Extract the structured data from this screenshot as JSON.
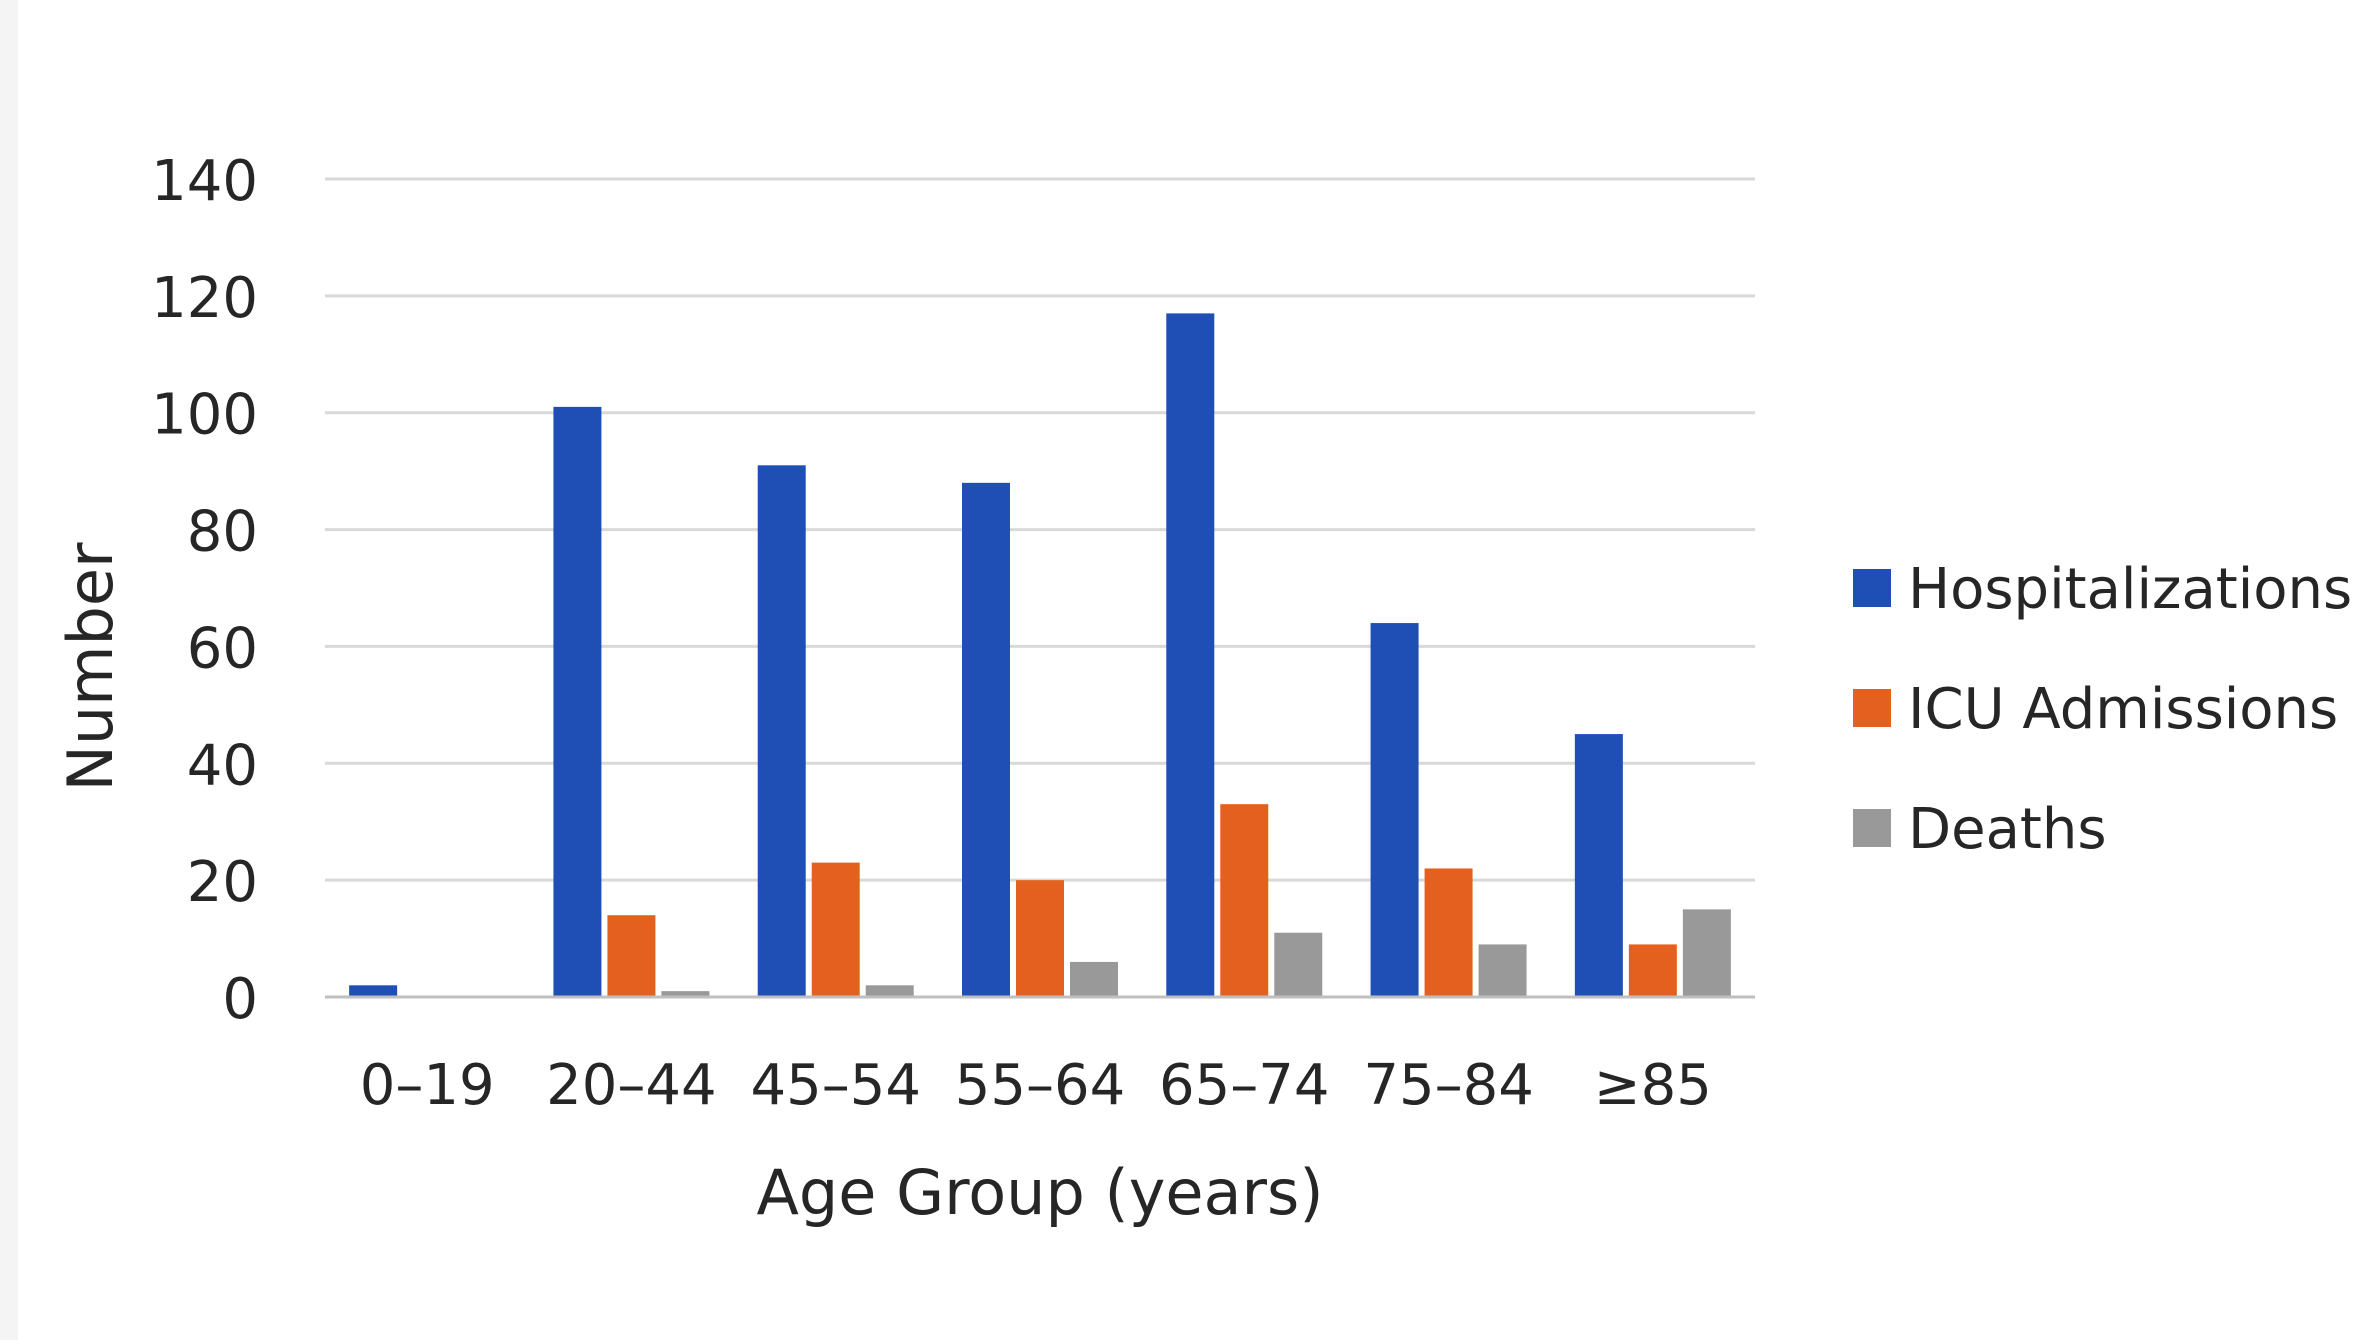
{
  "chart_data": {
    "type": "bar",
    "title": "",
    "xlabel": "Age Group (years)",
    "ylabel": "Number",
    "ylim": [
      0,
      140
    ],
    "yticks": [
      "0",
      "20",
      "40",
      "60",
      "80",
      "100",
      "120",
      "140"
    ],
    "grid": true,
    "legend_position": "right",
    "categories": [
      "0–19",
      "20–44",
      "45–54",
      "55–64",
      "65–74",
      "75–84",
      "≥85"
    ],
    "series": [
      {
        "name": "Hospitalizations",
        "color": "#1f4fb5",
        "values": [
          2,
          101,
          91,
          88,
          117,
          64,
          45
        ]
      },
      {
        "name": "ICU Admissions",
        "color": "#e4601f",
        "values": [
          0,
          14,
          23,
          20,
          33,
          22,
          9
        ]
      },
      {
        "name": "Deaths",
        "color": "#999999",
        "values": [
          0,
          1,
          2,
          6,
          11,
          9,
          15
        ]
      }
    ]
  }
}
